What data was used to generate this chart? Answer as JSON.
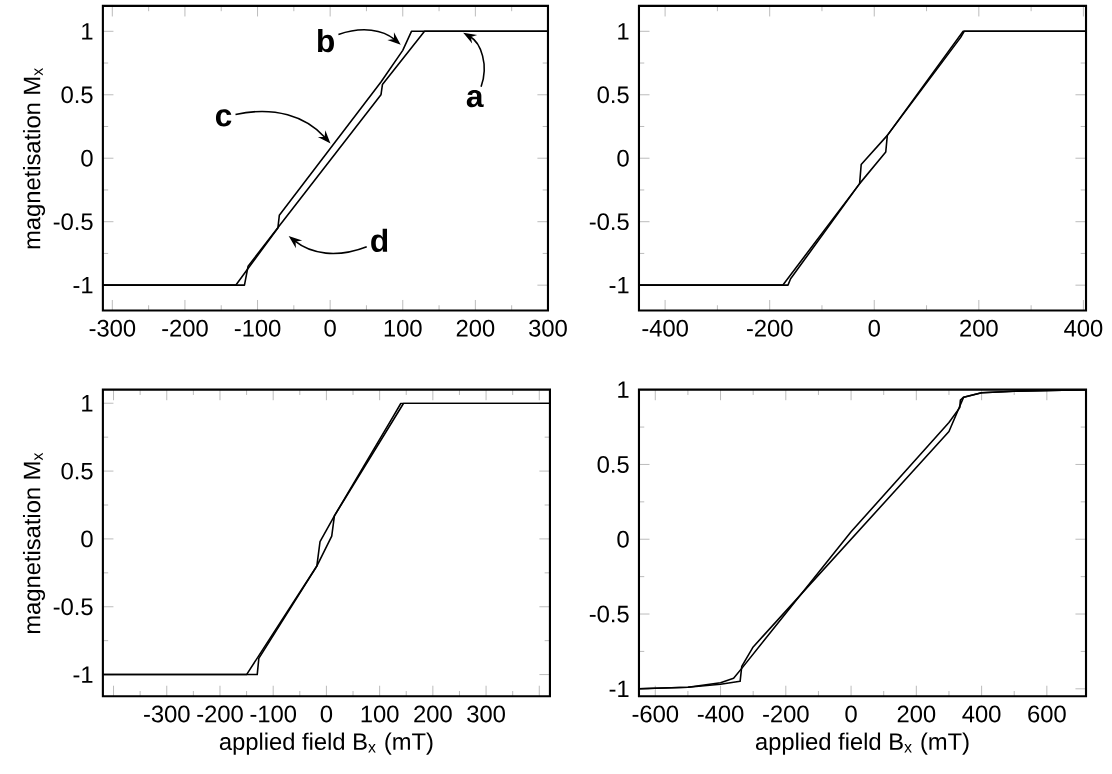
{
  "chart_data": [
    {
      "type": "line",
      "xlim": [
        -313,
        300
      ],
      "ylim": [
        -1.2,
        1.2
      ],
      "xticks": [
        -300,
        -200,
        -100,
        0,
        100,
        200,
        300
      ],
      "yticks": [
        -1,
        -0.5,
        0,
        0.5,
        1
      ],
      "ylabel": "magnetisation M$_{x}$",
      "series": [
        {
          "color": "#000000",
          "x": [
            -313,
            -118,
            -113,
            -75,
            70,
            72,
            130,
            300
          ],
          "values": [
            -1,
            -1,
            -0.85,
            -0.57,
            0.5,
            0.58,
            1,
            1
          ]
        },
        {
          "color": "#000000",
          "x": [
            300,
            112,
            100,
            70,
            -70,
            -72,
            -130,
            -313
          ],
          "values": [
            1,
            1,
            0.85,
            0.6,
            -0.45,
            -0.55,
            -1,
            -1
          ]
        }
      ],
      "annotations": [
        {
          "text": "a",
          "x": 180,
          "y": 1
        },
        {
          "text": "b",
          "x": 100,
          "y": 0.88
        },
        {
          "text": "c",
          "x": 3,
          "y": 0.1
        },
        {
          "text": "d",
          "x": -60,
          "y": -0.6
        }
      ]
    },
    {
      "type": "line",
      "xlim": [
        -450,
        405
      ],
      "ylim": [
        -1.2,
        1.2
      ],
      "xticks": [
        -400,
        -200,
        0,
        200,
        400
      ],
      "yticks": [
        -1,
        -0.5,
        0,
        0.5,
        1
      ],
      "series": [
        {
          "color": "#000000",
          "x": [
            -450,
            -165,
            -160,
            -28,
            22,
            25,
            170,
            405
          ],
          "values": [
            -1,
            -1,
            -0.95,
            -0.2,
            0.05,
            0.18,
            1,
            1
          ]
        },
        {
          "color": "#000000",
          "x": [
            405,
            172,
            165,
            25,
            -25,
            -28,
            -175,
            -450
          ],
          "values": [
            1,
            1,
            0.95,
            0.18,
            -0.05,
            -0.2,
            -1,
            -1
          ]
        }
      ]
    },
    {
      "type": "line",
      "xlim": [
        -420,
        420
      ],
      "ylim": [
        -1.16,
        1.1
      ],
      "xticks": [
        {
          "value": -400,
          "label": null
        },
        -300,
        -200,
        -100,
        0,
        100,
        200,
        300,
        {
          "value": 400,
          "label": null
        }
      ],
      "yticks": [
        -1,
        -0.5,
        0,
        0.5,
        1
      ],
      "xlabel": "applied field B$_{x}$ (mT)",
      "ylabel": "magnetisation M$_{x}$",
      "series": [
        {
          "color": "#000000",
          "x": [
            -420,
            -130,
            -127,
            -18,
            10,
            15,
            145,
            420
          ],
          "values": [
            -1,
            -1,
            -0.88,
            -0.2,
            0.02,
            0.17,
            1,
            1
          ]
        },
        {
          "color": "#000000",
          "x": [
            420,
            140,
            125,
            15,
            -12,
            -18,
            -150,
            -420
          ],
          "values": [
            1,
            1,
            0.9,
            0.17,
            -0.02,
            -0.2,
            -1,
            -1
          ]
        }
      ]
    },
    {
      "type": "line",
      "xlim": [
        -650,
        720
      ],
      "ylim": [
        -1.05,
        1.0
      ],
      "xticks": [
        -600,
        -400,
        -200,
        0,
        200,
        400,
        600
      ],
      "yticks": [
        -1,
        -0.5,
        0,
        0.5,
        1
      ],
      "xlabel": "applied field B$_{x}$ (mT)",
      "series": [
        {
          "color": "#000000",
          "x": [
            -650,
            -500,
            -400,
            -340,
            -335,
            -300,
            0,
            300,
            345,
            400,
            500,
            720
          ],
          "values": [
            -1,
            -0.99,
            -0.97,
            -0.95,
            -0.85,
            -0.72,
            0,
            0.72,
            0.95,
            0.98,
            0.99,
            1
          ]
        },
        {
          "color": "#000000",
          "x": [
            720,
            500,
            400,
            345,
            335,
            333,
            300,
            0,
            -330,
            -360,
            -400,
            -500,
            -650
          ],
          "values": [
            1,
            0.99,
            0.98,
            0.95,
            0.93,
            0.88,
            0.78,
            0.05,
            -0.85,
            -0.93,
            -0.96,
            -0.99,
            -1
          ]
        }
      ]
    }
  ]
}
